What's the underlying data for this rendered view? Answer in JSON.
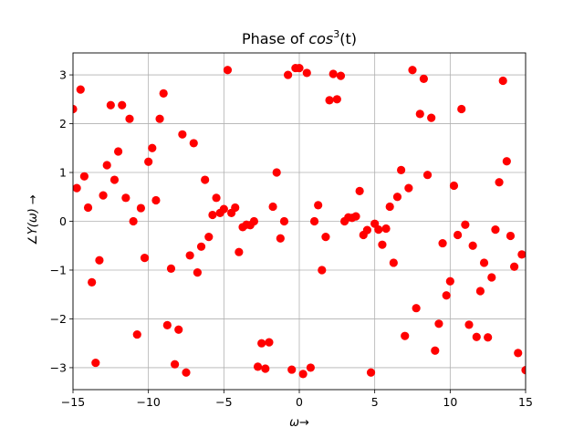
{
  "chart_data": {
    "type": "scatter",
    "title_prefix": "Phase of ",
    "title_math_base": "cos",
    "title_math_exp": "3",
    "title_math_arg": "(t)",
    "xlabel": "ω→",
    "ylabel": "∠Y(ω) →",
    "xlim": [
      -15,
      15
    ],
    "ylim": [
      -3.45,
      3.45
    ],
    "xticks": [
      -15,
      -10,
      -5,
      0,
      5,
      10,
      15
    ],
    "xtick_labels": [
      "−15",
      "−10",
      "−5",
      "0",
      "5",
      "10",
      "15"
    ],
    "yticks": [
      -3,
      -2,
      -1,
      0,
      1,
      2,
      3
    ],
    "ytick_labels": [
      "−3",
      "−2",
      "−1",
      "0",
      "1",
      "2",
      "3"
    ],
    "grid": true,
    "marker_color": "#ff0000",
    "points": [
      [
        -15.0,
        2.3
      ],
      [
        -14.75,
        0.68
      ],
      [
        -14.5,
        2.7
      ],
      [
        -14.25,
        0.92
      ],
      [
        -14.0,
        0.28
      ],
      [
        -13.75,
        -1.25
      ],
      [
        -13.5,
        -2.9
      ],
      [
        -13.25,
        -0.8
      ],
      [
        -13.0,
        0.53
      ],
      [
        -12.75,
        1.15
      ],
      [
        -12.5,
        2.38
      ],
      [
        -12.25,
        0.85
      ],
      [
        -12.0,
        1.43
      ],
      [
        -11.75,
        2.38
      ],
      [
        -11.5,
        0.48
      ],
      [
        -11.25,
        2.1
      ],
      [
        -11.0,
        0.0
      ],
      [
        -10.75,
        -2.32
      ],
      [
        -10.5,
        0.27
      ],
      [
        -10.25,
        -0.75
      ],
      [
        -10.0,
        1.22
      ],
      [
        -9.75,
        1.5
      ],
      [
        -9.5,
        0.43
      ],
      [
        -9.25,
        2.1
      ],
      [
        -9.0,
        2.62
      ],
      [
        -8.75,
        -2.13
      ],
      [
        -8.5,
        -0.97
      ],
      [
        -8.25,
        -2.93
      ],
      [
        -8.0,
        -2.22
      ],
      [
        -7.75,
        1.78
      ],
      [
        -7.5,
        -3.1
      ],
      [
        -7.25,
        -0.7
      ],
      [
        -7.0,
        1.6
      ],
      [
        -6.75,
        -1.05
      ],
      [
        -6.5,
        -0.52
      ],
      [
        -6.25,
        0.85
      ],
      [
        -6.0,
        -0.32
      ],
      [
        -5.75,
        0.13
      ],
      [
        -5.5,
        0.48
      ],
      [
        -5.25,
        0.17
      ],
      [
        -5.0,
        0.25
      ],
      [
        -4.75,
        3.1
      ],
      [
        -4.5,
        0.17
      ],
      [
        -4.25,
        0.28
      ],
      [
        -4.0,
        -0.63
      ],
      [
        -3.75,
        -0.12
      ],
      [
        -3.5,
        -0.07
      ],
      [
        -3.25,
        -0.08
      ],
      [
        -3.0,
        0.0
      ],
      [
        -2.75,
        -2.98
      ],
      [
        -2.5,
        -2.5
      ],
      [
        -2.25,
        -3.02
      ],
      [
        -2.0,
        -2.48
      ],
      [
        -1.75,
        0.3
      ],
      [
        -1.5,
        1.0
      ],
      [
        -1.25,
        -0.35
      ],
      [
        -1.0,
        0.0
      ],
      [
        -0.75,
        3.0
      ],
      [
        -0.5,
        -3.04
      ],
      [
        -0.25,
        3.14
      ],
      [
        0.0,
        3.14
      ],
      [
        0.25,
        -3.13
      ],
      [
        0.5,
        3.04
      ],
      [
        0.75,
        -3.0
      ],
      [
        1.0,
        0.0
      ],
      [
        1.25,
        0.33
      ],
      [
        1.5,
        -1.0
      ],
      [
        1.75,
        -0.32
      ],
      [
        2.0,
        2.48
      ],
      [
        2.25,
        3.02
      ],
      [
        2.5,
        2.5
      ],
      [
        2.75,
        2.98
      ],
      [
        3.0,
        0.0
      ],
      [
        3.25,
        0.08
      ],
      [
        3.5,
        0.07
      ],
      [
        3.75,
        0.1
      ],
      [
        4.0,
        0.62
      ],
      [
        4.25,
        -0.28
      ],
      [
        4.5,
        -0.18
      ],
      [
        4.75,
        -3.1
      ],
      [
        5.0,
        -0.05
      ],
      [
        5.25,
        -0.17
      ],
      [
        5.5,
        -0.48
      ],
      [
        5.75,
        -0.15
      ],
      [
        6.0,
        0.3
      ],
      [
        6.25,
        -0.85
      ],
      [
        6.5,
        0.5
      ],
      [
        6.75,
        1.05
      ],
      [
        7.0,
        -2.35
      ],
      [
        7.25,
        0.68
      ],
      [
        7.5,
        3.1
      ],
      [
        7.75,
        -1.78
      ],
      [
        8.0,
        2.2
      ],
      [
        8.25,
        2.92
      ],
      [
        8.5,
        0.95
      ],
      [
        8.75,
        2.12
      ],
      [
        9.0,
        -2.65
      ],
      [
        9.25,
        -2.1
      ],
      [
        9.5,
        -0.45
      ],
      [
        9.75,
        -1.52
      ],
      [
        10.0,
        -1.23
      ],
      [
        10.25,
        0.73
      ],
      [
        10.5,
        -0.28
      ],
      [
        10.75,
        2.3
      ],
      [
        11.0,
        -0.07
      ],
      [
        11.25,
        -2.12
      ],
      [
        11.5,
        -0.5
      ],
      [
        11.75,
        -2.37
      ],
      [
        12.0,
        -1.43
      ],
      [
        12.25,
        -0.85
      ],
      [
        12.5,
        -2.38
      ],
      [
        12.75,
        -1.15
      ],
      [
        13.0,
        -0.17
      ],
      [
        13.25,
        0.8
      ],
      [
        13.5,
        2.88
      ],
      [
        13.75,
        1.23
      ],
      [
        14.0,
        -0.3
      ],
      [
        14.25,
        -0.93
      ],
      [
        14.5,
        -2.7
      ],
      [
        14.75,
        -0.68
      ],
      [
        15.0,
        -3.05
      ]
    ]
  }
}
